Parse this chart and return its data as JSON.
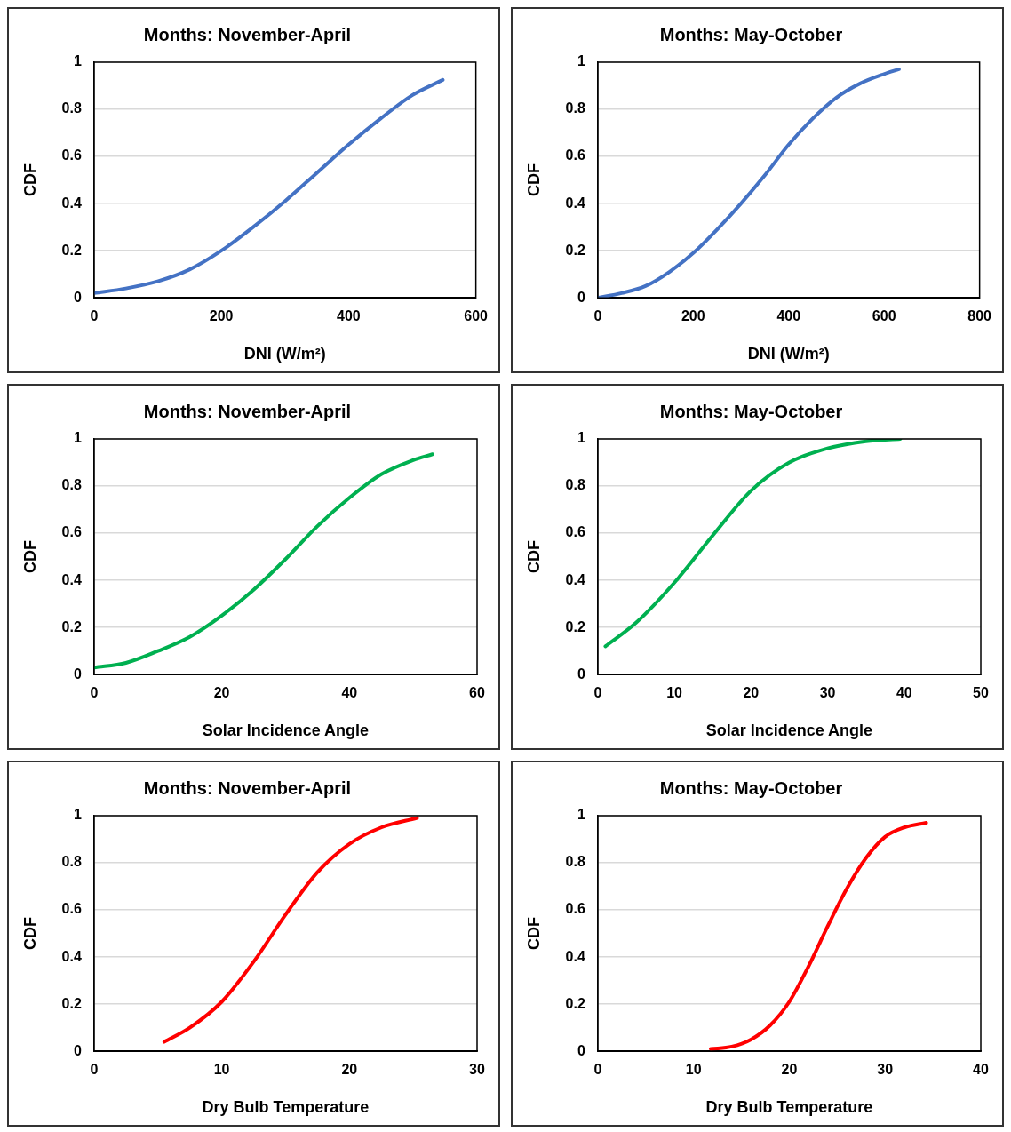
{
  "chart_data": [
    {
      "type": "line",
      "title": "Months: November-April",
      "xlabel": "DNI (W/m²)",
      "ylabel": "CDF",
      "grid": "y",
      "color": "#4472c4",
      "xlim": [
        0,
        600
      ],
      "xticks": [
        0,
        200,
        400,
        600
      ],
      "ylim": [
        0,
        1
      ],
      "yticks": [
        0,
        0.2,
        0.4,
        0.6,
        0.8,
        1
      ],
      "x": [
        0,
        50,
        100,
        150,
        200,
        250,
        300,
        350,
        400,
        450,
        500,
        548
      ],
      "values": [
        0.02,
        0.04,
        0.07,
        0.12,
        0.2,
        0.3,
        0.41,
        0.53,
        0.65,
        0.76,
        0.86,
        0.925
      ]
    },
    {
      "type": "line",
      "title": "Months: May-October",
      "xlabel": "DNI (W/m²)",
      "ylabel": "CDF",
      "grid": "y",
      "color": "#4472c4",
      "xlim": [
        0,
        800
      ],
      "xticks": [
        0,
        200,
        400,
        600,
        800
      ],
      "ylim": [
        0,
        1
      ],
      "yticks": [
        0,
        0.2,
        0.4,
        0.6,
        0.8,
        1
      ],
      "x": [
        0,
        50,
        100,
        150,
        200,
        250,
        300,
        350,
        400,
        450,
        500,
        550,
        600,
        631
      ],
      "values": [
        0,
        0.02,
        0.05,
        0.11,
        0.19,
        0.29,
        0.4,
        0.52,
        0.65,
        0.76,
        0.85,
        0.91,
        0.95,
        0.97
      ]
    },
    {
      "type": "line",
      "title": "Months: November-April",
      "xlabel": "Solar Incidence Angle",
      "ylabel": "CDF",
      "grid": "y",
      "color": "#00b050",
      "xlim": [
        0,
        60
      ],
      "xticks": [
        0,
        20,
        40,
        60
      ],
      "ylim": [
        0,
        1
      ],
      "yticks": [
        0,
        0.2,
        0.4,
        0.6,
        0.8,
        1
      ],
      "x": [
        0,
        5,
        10,
        15,
        20,
        25,
        30,
        35,
        40,
        45,
        50,
        53
      ],
      "values": [
        0.03,
        0.05,
        0.1,
        0.16,
        0.25,
        0.36,
        0.49,
        0.63,
        0.75,
        0.85,
        0.91,
        0.935
      ]
    },
    {
      "type": "line",
      "title": "Months: May-October",
      "xlabel": "Solar Incidence Angle",
      "ylabel": "CDF",
      "grid": "y",
      "color": "#00b050",
      "xlim": [
        0,
        50
      ],
      "xticks": [
        0,
        10,
        20,
        30,
        40,
        50
      ],
      "ylim": [
        0,
        1
      ],
      "yticks": [
        0,
        0.2,
        0.4,
        0.6,
        0.8,
        1
      ],
      "x": [
        1,
        5,
        10,
        15,
        20,
        25,
        30,
        35,
        39.5
      ],
      "values": [
        0.12,
        0.22,
        0.39,
        0.59,
        0.78,
        0.9,
        0.96,
        0.99,
        1
      ]
    },
    {
      "type": "line",
      "title": "Months: November-April",
      "xlabel": "Dry Bulb Temperature",
      "ylabel": "CDF",
      "grid": "y",
      "color": "#ff0000",
      "xlim": [
        0,
        30
      ],
      "xticks": [
        0,
        10,
        20,
        30
      ],
      "ylim": [
        0,
        1
      ],
      "yticks": [
        0,
        0.2,
        0.4,
        0.6,
        0.8,
        1
      ],
      "x": [
        5.5,
        7.5,
        10,
        12.5,
        15,
        17.5,
        20,
        22.5,
        25.3
      ],
      "values": [
        0.04,
        0.1,
        0.21,
        0.38,
        0.58,
        0.76,
        0.88,
        0.95,
        0.99
      ]
    },
    {
      "type": "line",
      "title": "Months: May-October",
      "xlabel": "Dry Bulb Temperature",
      "ylabel": "CDF",
      "grid": "y",
      "color": "#ff0000",
      "xlim": [
        0,
        40
      ],
      "xticks": [
        0,
        10,
        20,
        30,
        40
      ],
      "ylim": [
        0,
        1
      ],
      "yticks": [
        0,
        0.2,
        0.4,
        0.6,
        0.8,
        1
      ],
      "x": [
        11.8,
        14,
        16,
        18,
        20,
        22,
        24,
        26,
        28,
        30,
        32,
        34.3
      ],
      "values": [
        0.01,
        0.02,
        0.05,
        0.11,
        0.21,
        0.36,
        0.53,
        0.69,
        0.82,
        0.91,
        0.95,
        0.97
      ]
    }
  ]
}
